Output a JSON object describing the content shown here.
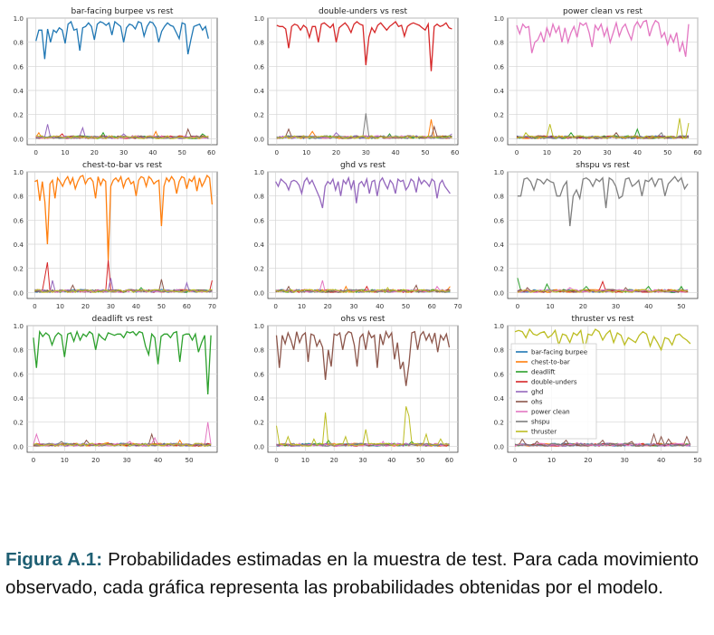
{
  "figure": {
    "caption_label": "Figura A.1:",
    "caption_text": "Probabilidades estimadas en la muestra de test. Para cada movimiento observado, cada gráfica representa las probabilidades obtenidas por el modelo."
  },
  "colors": {
    "bar-facing burpee": "#1f77b4",
    "chest-to-bar": "#ff7f0e",
    "deadlift": "#2ca02c",
    "double-unders": "#d62728",
    "ghd": "#9467bd",
    "ohs": "#8c564b",
    "power clean": "#e377c2",
    "shspu": "#7f7f7f",
    "thruster": "#bcbd22"
  },
  "legend": {
    "location": "upper left of panel 9",
    "entries": [
      "bar-facing burpee",
      "chest-to-bar",
      "deadlift",
      "double-unders",
      "ghd",
      "ohs",
      "power clean",
      "shspu",
      "thruster"
    ]
  },
  "chart_data": [
    {
      "type": "line",
      "title": "bar-facing burpee vs rest",
      "main": "bar-facing burpee",
      "n": 60,
      "xlim": [
        -3,
        62
      ],
      "ylim": [
        -0.05,
        1.0
      ],
      "xticks": [
        0,
        10,
        20,
        30,
        40,
        50,
        60
      ],
      "yticks": [
        0.0,
        0.2,
        0.4,
        0.6,
        0.8,
        1.0
      ],
      "grid": true,
      "main_values": [
        0.81,
        0.9,
        0.9,
        0.66,
        0.91,
        0.8,
        0.9,
        0.88,
        0.92,
        0.9,
        0.79,
        0.95,
        0.97,
        0.9,
        0.91,
        0.73,
        0.92,
        0.93,
        0.96,
        0.93,
        0.82,
        0.95,
        0.97,
        0.96,
        0.94,
        0.96,
        0.86,
        0.97,
        0.95,
        0.93,
        0.8,
        0.92,
        0.95,
        0.94,
        0.91,
        0.97,
        0.96,
        0.85,
        0.93,
        0.97,
        0.96,
        0.92,
        0.8,
        0.89,
        0.93,
        0.96,
        0.94,
        0.93,
        0.88,
        0.83,
        0.96,
        0.95,
        0.7,
        0.82,
        0.93,
        0.94,
        0.95,
        0.9,
        0.93,
        0.83
      ],
      "spikes": [
        [
          1,
          "chest-to-bar",
          0.05
        ],
        [
          4,
          "ghd",
          0.12
        ],
        [
          9,
          "double-unders",
          0.04
        ],
        [
          16,
          "ghd",
          0.09
        ],
        [
          23,
          "deadlift",
          0.05
        ],
        [
          30,
          "ghd",
          0.04
        ],
        [
          41,
          "chest-to-bar",
          0.06
        ],
        [
          52,
          "ohs",
          0.08
        ],
        [
          57,
          "deadlift",
          0.04
        ]
      ]
    },
    {
      "type": "line",
      "title": "double-unders vs rest",
      "main": "double-unders",
      "n": 60,
      "xlim": [
        -3,
        61
      ],
      "ylim": [
        -0.05,
        1.0
      ],
      "xticks": [
        0,
        10,
        20,
        30,
        40,
        50,
        60
      ],
      "yticks": [
        0.0,
        0.2,
        0.4,
        0.6,
        0.8,
        1.0
      ],
      "grid": true,
      "main_values": [
        0.94,
        0.93,
        0.93,
        0.91,
        0.75,
        0.93,
        0.95,
        0.94,
        0.9,
        0.94,
        0.92,
        0.84,
        0.93,
        0.93,
        0.8,
        0.95,
        0.96,
        0.94,
        0.92,
        0.95,
        0.8,
        0.92,
        0.94,
        0.96,
        0.93,
        0.88,
        0.95,
        0.97,
        0.95,
        0.94,
        0.61,
        0.84,
        0.92,
        0.88,
        0.94,
        0.96,
        0.93,
        0.9,
        0.93,
        0.95,
        0.97,
        0.93,
        0.94,
        0.85,
        0.93,
        0.95,
        0.96,
        0.95,
        0.94,
        0.92,
        0.9,
        0.95,
        0.56,
        0.93,
        0.95,
        0.93,
        0.94,
        0.96,
        0.92,
        0.91
      ],
      "spikes": [
        [
          4,
          "ohs",
          0.08
        ],
        [
          12,
          "chest-to-bar",
          0.06
        ],
        [
          20,
          "ghd",
          0.05
        ],
        [
          30,
          "shspu",
          0.21
        ],
        [
          38,
          "deadlift",
          0.04
        ],
        [
          52,
          "chest-to-bar",
          0.16
        ],
        [
          53,
          "ohs",
          0.1
        ],
        [
          59,
          "ghd",
          0.04
        ]
      ]
    },
    {
      "type": "line",
      "title": "power clean vs rest",
      "main": "power clean",
      "n": 58,
      "xlim": [
        -3,
        60
      ],
      "ylim": [
        -0.05,
        1.0
      ],
      "xticks": [
        0,
        10,
        20,
        30,
        40,
        50,
        60
      ],
      "yticks": [
        0.0,
        0.2,
        0.4,
        0.6,
        0.8,
        1.0
      ],
      "grid": true,
      "main_values": [
        0.94,
        0.87,
        0.95,
        0.92,
        0.93,
        0.71,
        0.8,
        0.82,
        0.88,
        0.8,
        0.92,
        0.85,
        0.95,
        0.88,
        0.93,
        0.8,
        0.92,
        0.8,
        0.88,
        0.93,
        0.84,
        0.96,
        0.94,
        0.96,
        0.88,
        0.76,
        0.94,
        0.9,
        0.95,
        0.85,
        0.92,
        0.8,
        0.88,
        0.96,
        0.85,
        0.92,
        0.95,
        0.88,
        0.82,
        0.93,
        0.97,
        0.92,
        0.97,
        0.98,
        0.85,
        0.93,
        0.98,
        0.96,
        0.84,
        0.88,
        0.78,
        0.86,
        0.8,
        0.88,
        0.72,
        0.8,
        0.68,
        0.95
      ],
      "spikes": [
        [
          3,
          "thruster",
          0.05
        ],
        [
          11,
          "thruster",
          0.12
        ],
        [
          18,
          "deadlift",
          0.05
        ],
        [
          25,
          "power clean",
          0.04
        ],
        [
          33,
          "ohs",
          0.05
        ],
        [
          40,
          "deadlift",
          0.08
        ],
        [
          48,
          "shspu",
          0.05
        ],
        [
          54,
          "thruster",
          0.17
        ],
        [
          57,
          "thruster",
          0.13
        ]
      ]
    },
    {
      "type": "line",
      "title": "chest-to-bar vs rest",
      "main": "chest-to-bar",
      "n": 71,
      "xlim": [
        -3,
        72
      ],
      "ylim": [
        -0.05,
        1.0
      ],
      "xticks": [
        0,
        10,
        20,
        30,
        40,
        50,
        60,
        70
      ],
      "yticks": [
        0.0,
        0.2,
        0.4,
        0.6,
        0.8,
        1.0
      ],
      "grid": true,
      "main_values": [
        0.92,
        0.93,
        0.76,
        0.92,
        0.75,
        0.4,
        0.9,
        0.93,
        0.78,
        0.95,
        0.92,
        0.88,
        0.93,
        0.96,
        0.9,
        0.95,
        0.86,
        0.92,
        0.96,
        0.97,
        0.9,
        0.94,
        0.95,
        0.92,
        0.78,
        0.96,
        0.89,
        0.94,
        0.92,
        0.27,
        0.88,
        0.93,
        0.95,
        0.92,
        0.96,
        0.87,
        0.93,
        0.95,
        0.9,
        0.92,
        0.8,
        0.93,
        0.96,
        0.95,
        0.88,
        0.96,
        0.94,
        0.9,
        0.92,
        0.93,
        0.55,
        0.88,
        0.95,
        0.92,
        0.96,
        0.93,
        0.82,
        0.92,
        0.96,
        0.95,
        0.86,
        0.94,
        0.92,
        0.96,
        0.84,
        0.95,
        0.88,
        0.92,
        0.97,
        0.95,
        0.73
      ],
      "spikes": [
        [
          4,
          "double-unders",
          0.13
        ],
        [
          5,
          "double-unders",
          0.25
        ],
        [
          7,
          "ghd",
          0.1
        ],
        [
          15,
          "ohs",
          0.06
        ],
        [
          29,
          "double-unders",
          0.27
        ],
        [
          30,
          "ghd",
          0.12
        ],
        [
          42,
          "deadlift",
          0.04
        ],
        [
          50,
          "ohs",
          0.11
        ],
        [
          60,
          "ghd",
          0.08
        ],
        [
          70,
          "double-unders",
          0.1
        ]
      ]
    },
    {
      "type": "line",
      "title": "ghd vs rest",
      "main": "ghd",
      "n": 68,
      "xlim": [
        -3,
        70
      ],
      "ylim": [
        -0.05,
        1.0
      ],
      "xticks": [
        0,
        10,
        20,
        30,
        40,
        50,
        60,
        70
      ],
      "yticks": [
        0.0,
        0.2,
        0.4,
        0.6,
        0.8,
        1.0
      ],
      "grid": true,
      "main_values": [
        0.92,
        0.88,
        0.94,
        0.92,
        0.9,
        0.85,
        0.92,
        0.93,
        0.92,
        0.89,
        0.82,
        0.92,
        0.95,
        0.9,
        0.93,
        0.88,
        0.83,
        0.78,
        0.7,
        0.88,
        0.92,
        0.9,
        0.94,
        0.85,
        0.92,
        0.8,
        0.93,
        0.9,
        0.95,
        0.86,
        0.93,
        0.74,
        0.9,
        0.92,
        0.88,
        0.94,
        0.82,
        0.92,
        0.93,
        0.8,
        0.92,
        0.95,
        0.9,
        0.86,
        0.93,
        0.9,
        0.82,
        0.94,
        0.92,
        0.93,
        0.85,
        0.88,
        0.94,
        0.92,
        0.83,
        0.95,
        0.9,
        0.93,
        0.91,
        0.88,
        0.94,
        0.92,
        0.78,
        0.9,
        0.93,
        0.88,
        0.85,
        0.82
      ],
      "spikes": [
        [
          5,
          "ohs",
          0.05
        ],
        [
          18,
          "power clean",
          0.1
        ],
        [
          27,
          "chest-to-bar",
          0.05
        ],
        [
          35,
          "double-unders",
          0.05
        ],
        [
          43,
          "thruster",
          0.04
        ],
        [
          54,
          "ohs",
          0.06
        ],
        [
          62,
          "power clean",
          0.05
        ],
        [
          67,
          "chest-to-bar",
          0.05
        ]
      ]
    },
    {
      "type": "line",
      "title": "shspu vs rest",
      "main": "shspu",
      "n": 53,
      "xlim": [
        -3,
        55
      ],
      "ylim": [
        -0.05,
        1.0
      ],
      "xticks": [
        0,
        10,
        20,
        30,
        40,
        50
      ],
      "yticks": [
        0.0,
        0.2,
        0.4,
        0.6,
        0.8,
        1.0
      ],
      "grid": true,
      "main_values": [
        0.8,
        0.8,
        0.94,
        0.95,
        0.92,
        0.85,
        0.94,
        0.93,
        0.9,
        0.94,
        0.92,
        0.91,
        0.8,
        0.8,
        0.88,
        0.92,
        0.55,
        0.8,
        0.85,
        0.78,
        0.94,
        0.95,
        0.93,
        0.88,
        0.94,
        0.92,
        0.95,
        0.7,
        0.95,
        0.93,
        0.88,
        0.78,
        0.8,
        0.94,
        0.95,
        0.88,
        0.9,
        0.93,
        0.8,
        0.93,
        0.92,
        0.95,
        0.88,
        0.94,
        0.94,
        0.8,
        0.9,
        0.93,
        0.96,
        0.92,
        0.95,
        0.86,
        0.9
      ],
      "spikes": [
        [
          0,
          "deadlift",
          0.12
        ],
        [
          3,
          "ohs",
          0.04
        ],
        [
          9,
          "deadlift",
          0.07
        ],
        [
          16,
          "power clean",
          0.04
        ],
        [
          21,
          "deadlift",
          0.05
        ],
        [
          26,
          "double-unders",
          0.09
        ],
        [
          33,
          "ohs",
          0.04
        ],
        [
          40,
          "deadlift",
          0.05
        ],
        [
          50,
          "deadlift",
          0.05
        ]
      ]
    },
    {
      "type": "line",
      "title": "deadlift vs rest",
      "main": "deadlift",
      "n": 58,
      "xlim": [
        -2,
        59
      ],
      "ylim": [
        -0.05,
        1.0
      ],
      "xticks": [
        0,
        10,
        20,
        30,
        40,
        50
      ],
      "yticks": [
        0.0,
        0.2,
        0.4,
        0.6,
        0.8,
        1.0
      ],
      "grid": true,
      "main_values": [
        0.9,
        0.65,
        0.95,
        0.91,
        0.94,
        0.92,
        0.84,
        0.91,
        0.94,
        0.92,
        0.74,
        0.93,
        0.94,
        0.87,
        0.95,
        0.88,
        0.93,
        0.91,
        0.95,
        0.93,
        0.8,
        0.93,
        0.9,
        0.88,
        0.94,
        0.93,
        0.92,
        0.93,
        0.93,
        0.9,
        0.95,
        0.94,
        0.95,
        0.92,
        0.95,
        0.94,
        0.83,
        0.76,
        0.93,
        0.9,
        0.68,
        0.91,
        0.93,
        0.93,
        0.9,
        0.94,
        0.95,
        0.7,
        0.92,
        0.93,
        0.93,
        0.88,
        0.93,
        0.78,
        0.86,
        0.92,
        0.43,
        0.92
      ],
      "spikes": [
        [
          1,
          "power clean",
          0.1
        ],
        [
          9,
          "shspu",
          0.04
        ],
        [
          17,
          "ohs",
          0.05
        ],
        [
          24,
          "chest-to-bar",
          0.03
        ],
        [
          31,
          "power clean",
          0.04
        ],
        [
          38,
          "ohs",
          0.1
        ],
        [
          39,
          "power clean",
          0.07
        ],
        [
          47,
          "chest-to-bar",
          0.05
        ],
        [
          56,
          "power clean",
          0.2
        ]
      ]
    },
    {
      "type": "line",
      "title": "ohs vs rest",
      "main": "ohs",
      "n": 61,
      "xlim": [
        -3,
        63
      ],
      "ylim": [
        -0.05,
        1.0
      ],
      "xticks": [
        0,
        10,
        20,
        30,
        40,
        50,
        60
      ],
      "yticks": [
        0.0,
        0.2,
        0.4,
        0.6,
        0.8,
        1.0
      ],
      "grid": true,
      "main_values": [
        0.92,
        0.65,
        0.92,
        0.85,
        0.94,
        0.88,
        0.8,
        0.95,
        0.86,
        0.92,
        0.94,
        0.7,
        0.93,
        0.92,
        0.83,
        0.88,
        0.82,
        0.55,
        0.8,
        0.66,
        0.93,
        0.92,
        0.94,
        0.8,
        0.92,
        0.95,
        0.94,
        0.84,
        0.66,
        0.9,
        0.93,
        0.8,
        0.95,
        0.9,
        0.92,
        0.65,
        0.93,
        0.84,
        0.95,
        0.9,
        0.94,
        0.72,
        0.86,
        0.64,
        0.7,
        0.5,
        0.68,
        0.94,
        0.95,
        0.8,
        0.92,
        0.95,
        0.88,
        0.93,
        0.86,
        0.94,
        0.78,
        0.92,
        0.88,
        0.93,
        0.82
      ],
      "spikes": [
        [
          0,
          "thruster",
          0.17
        ],
        [
          4,
          "thruster",
          0.08
        ],
        [
          13,
          "thruster",
          0.06
        ],
        [
          17,
          "thruster",
          0.28
        ],
        [
          18,
          "deadlift",
          0.05
        ],
        [
          24,
          "thruster",
          0.08
        ],
        [
          31,
          "thruster",
          0.14
        ],
        [
          37,
          "power clean",
          0.04
        ],
        [
          45,
          "thruster",
          0.33
        ],
        [
          46,
          "thruster",
          0.25
        ],
        [
          47,
          "deadlift",
          0.04
        ],
        [
          52,
          "thruster",
          0.1
        ],
        [
          57,
          "thruster",
          0.06
        ]
      ]
    },
    {
      "type": "line",
      "title": "thruster vs rest",
      "main": "thruster",
      "n": 49,
      "xlim": [
        -2,
        50
      ],
      "ylim": [
        -0.05,
        1.0
      ],
      "xticks": [
        0,
        10,
        20,
        30,
        40,
        50
      ],
      "yticks": [
        0.0,
        0.2,
        0.4,
        0.6,
        0.8,
        1.0
      ],
      "grid": true,
      "main_values": [
        0.95,
        0.96,
        0.95,
        0.9,
        0.97,
        0.93,
        0.92,
        0.94,
        0.95,
        0.9,
        0.92,
        0.96,
        0.84,
        0.93,
        0.92,
        0.86,
        0.94,
        0.92,
        0.96,
        0.8,
        0.93,
        0.92,
        0.97,
        0.95,
        0.88,
        0.93,
        0.96,
        0.86,
        0.94,
        0.92,
        0.84,
        0.9,
        0.88,
        0.86,
        0.92,
        0.95,
        0.93,
        0.83,
        0.91,
        0.86,
        0.8,
        0.9,
        0.89,
        0.84,
        0.92,
        0.93,
        0.9,
        0.88,
        0.85
      ],
      "spikes": [
        [
          2,
          "ohs",
          0.06
        ],
        [
          6,
          "ohs",
          0.04
        ],
        [
          14,
          "ohs",
          0.05
        ],
        [
          17,
          "power clean",
          0.03
        ],
        [
          24,
          "ohs",
          0.05
        ],
        [
          32,
          "ohs",
          0.04
        ],
        [
          38,
          "ohs",
          0.1
        ],
        [
          40,
          "ohs",
          0.08
        ],
        [
          42,
          "ohs",
          0.06
        ],
        [
          47,
          "ohs",
          0.08
        ]
      ]
    }
  ]
}
